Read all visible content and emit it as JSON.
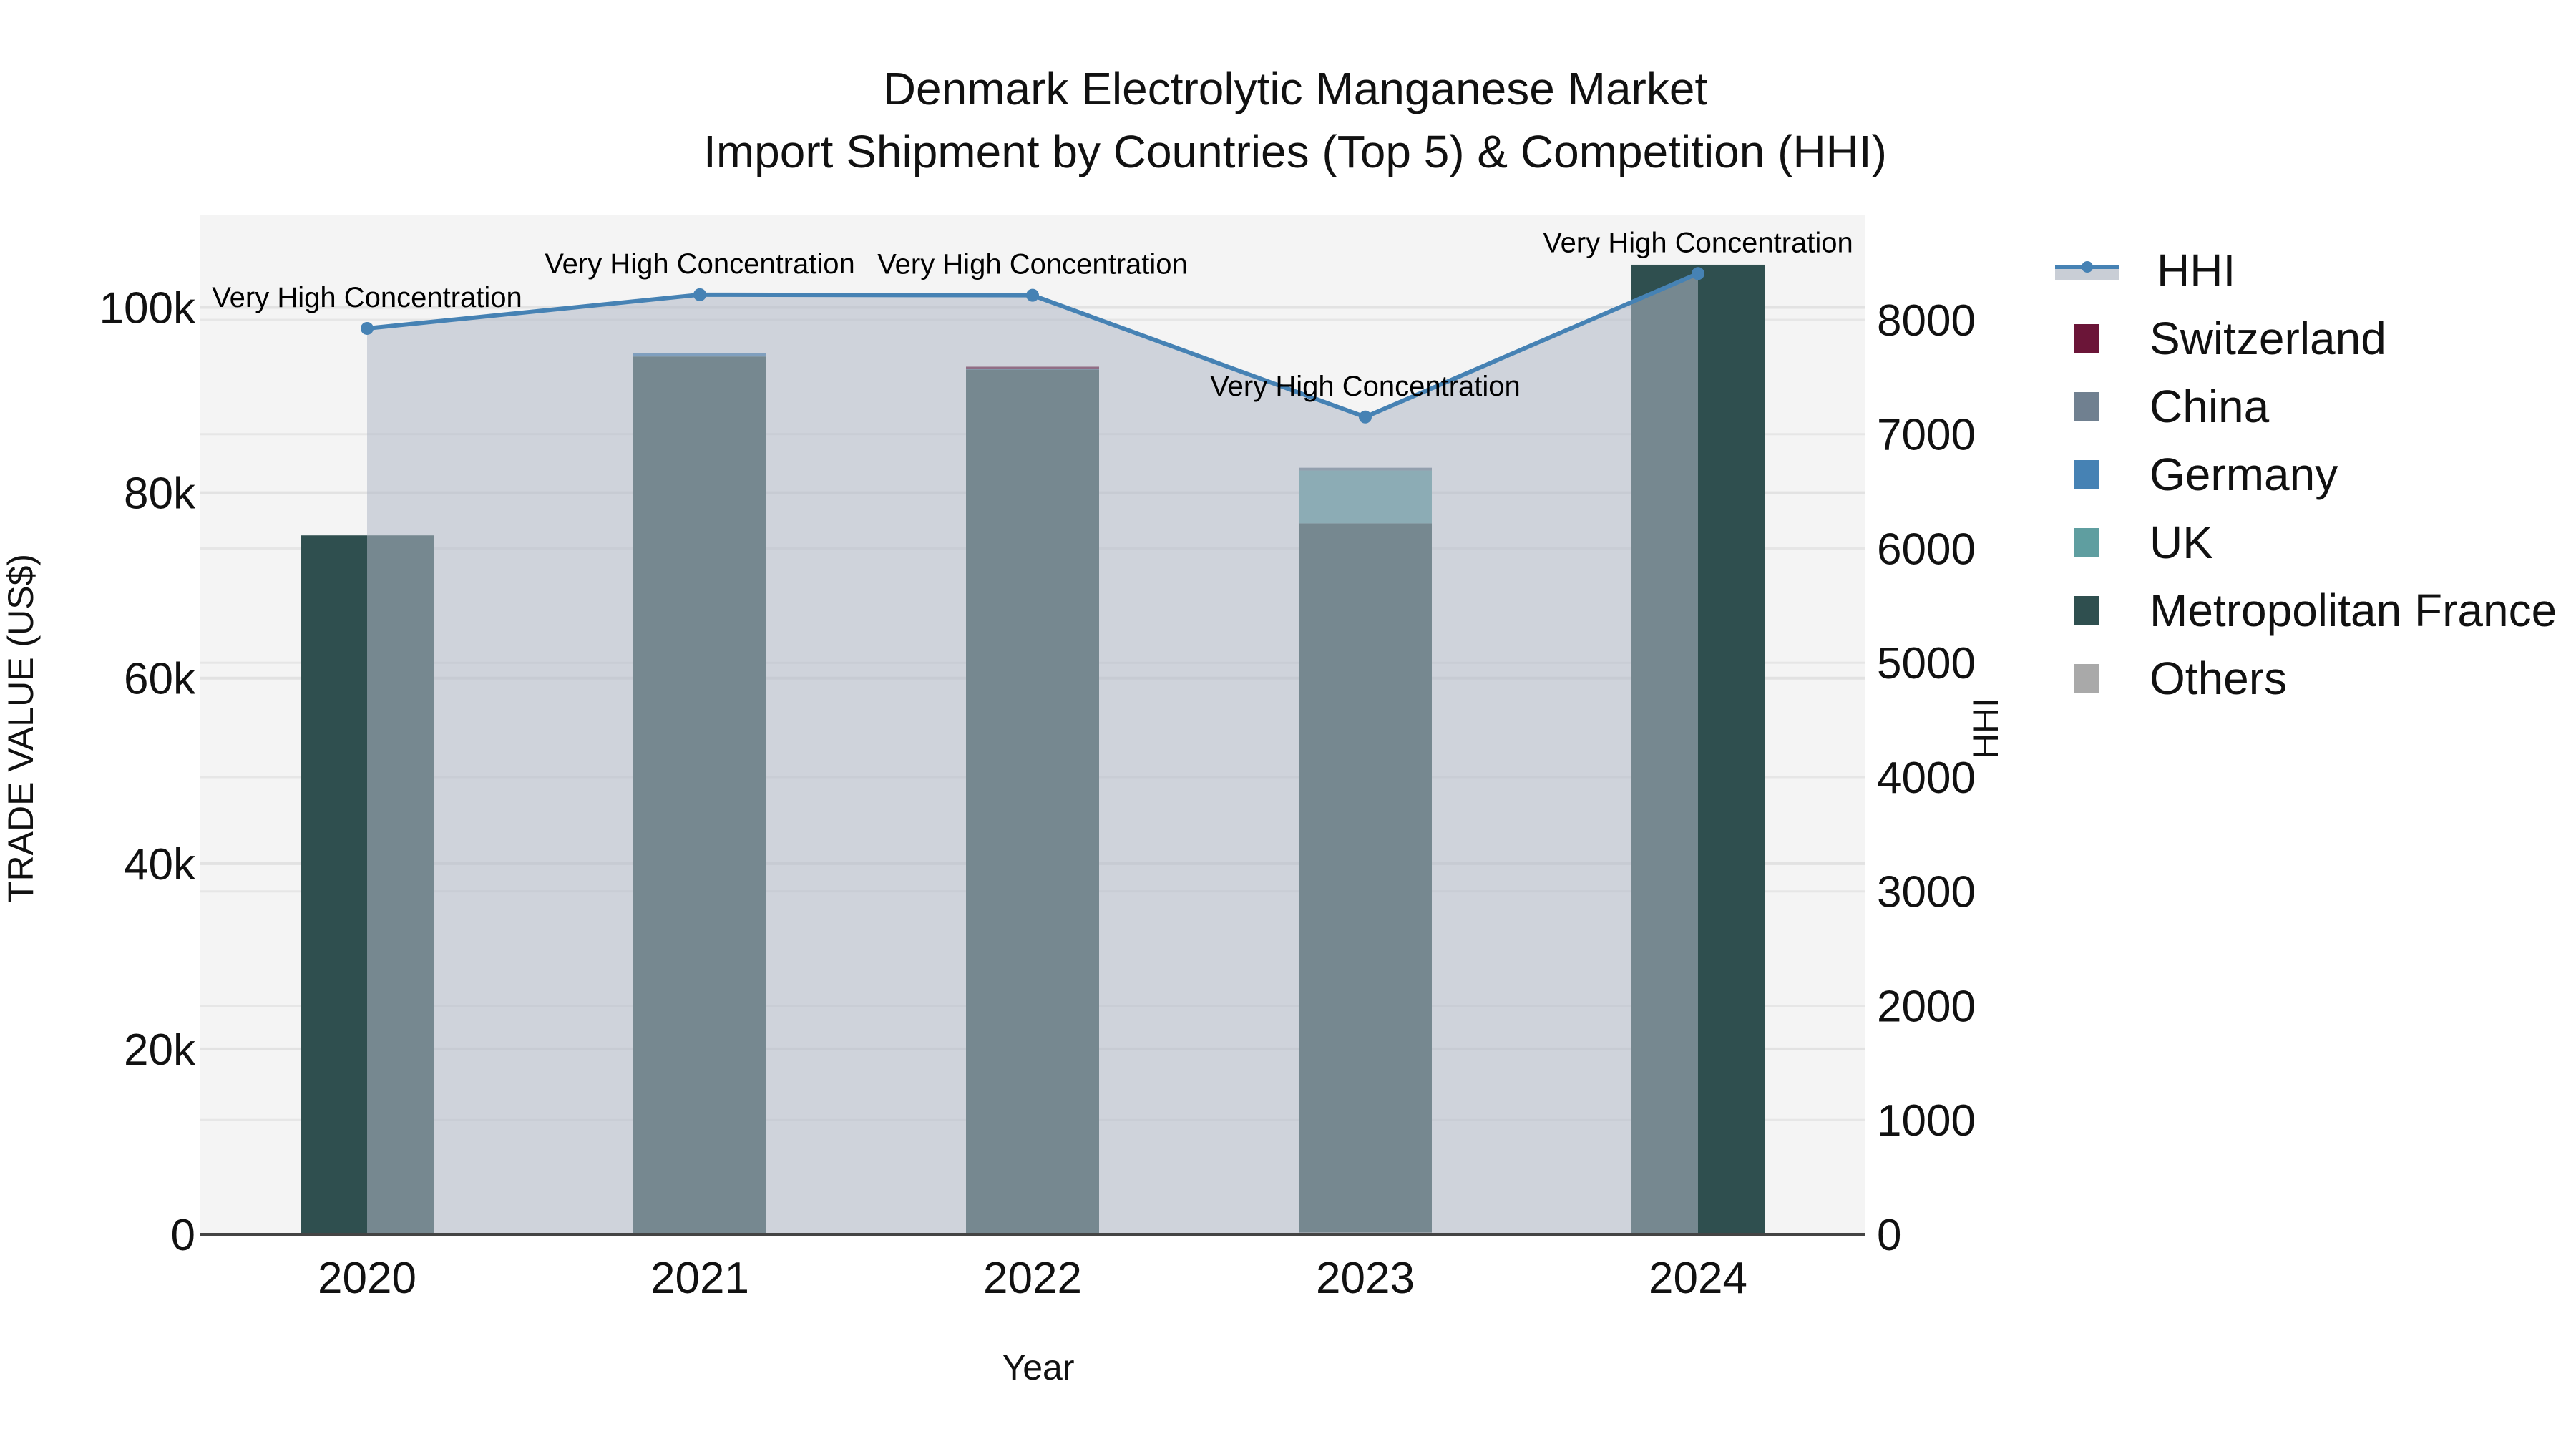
{
  "title": {
    "line1": "Denmark Electrolytic Manganese Market",
    "line2": "Import Shipment by Countries (Top 5) & Competition (HHI)"
  },
  "axes": {
    "x_title": "Year",
    "y_left_title": "TRADE VALUE (US$)",
    "y_right_title": "HHI",
    "y_left_ticks": [
      "0",
      "20k",
      "40k",
      "60k",
      "80k",
      "100k"
    ],
    "y_right_ticks": [
      "0",
      "1000",
      "2000",
      "3000",
      "4000",
      "5000",
      "6000",
      "7000",
      "8000"
    ],
    "x_ticks": [
      "2020",
      "2021",
      "2022",
      "2023",
      "2024"
    ]
  },
  "legend": [
    {
      "label": "HHI",
      "type": "line",
      "color": "#4682B4"
    },
    {
      "label": "Switzerland",
      "type": "bar",
      "color": "#6B1538"
    },
    {
      "label": "China",
      "type": "bar",
      "color": "#708090"
    },
    {
      "label": "Germany",
      "type": "bar",
      "color": "#4682B4"
    },
    {
      "label": "UK",
      "type": "bar",
      "color": "#5F9EA0"
    },
    {
      "label": "Metropolitan France",
      "type": "bar",
      "color": "#2F4F4F"
    },
    {
      "label": "Others",
      "type": "bar",
      "color": "#A9A9A9"
    }
  ],
  "chart_data": {
    "type": "bar",
    "subtype": "stacked bar + line (dual axis)",
    "title": "Denmark Electrolytic Manganese Market / Import Shipment by Countries (Top 5) & Competition (HHI)",
    "xlabel": "Year",
    "ylabel": "TRADE VALUE (US$)",
    "y2label": "HHI",
    "categories": [
      "2020",
      "2021",
      "2022",
      "2023",
      "2024"
    ],
    "ylim": [
      0,
      110000
    ],
    "y2lim": [
      0,
      8920
    ],
    "stack_order_bottom_to_top": [
      "Others",
      "Metropolitan France",
      "UK",
      "Germany",
      "China",
      "Switzerland"
    ],
    "series": [
      {
        "name": "Others",
        "color": "#A9A9A9",
        "values": [
          0,
          0,
          0,
          200,
          0
        ]
      },
      {
        "name": "Metropolitan France",
        "color": "#2F4F4F",
        "values": [
          75400,
          94700,
          93300,
          76500,
          104600
        ]
      },
      {
        "name": "UK",
        "color": "#5F9EA0",
        "values": [
          0,
          0,
          0,
          5700,
          0
        ]
      },
      {
        "name": "Germany",
        "color": "#4682B4",
        "values": [
          0,
          400,
          100,
          0,
          0
        ]
      },
      {
        "name": "China",
        "color": "#708090",
        "values": [
          0,
          0,
          0,
          300,
          0
        ]
      },
      {
        "name": "Switzerland",
        "color": "#6B1538",
        "values": [
          0,
          0,
          200,
          0,
          0
        ]
      }
    ],
    "line_series": {
      "name": "HHI",
      "axis": "right",
      "color": "#4682B4",
      "fill": "tozeroy",
      "values": [
        7925,
        8220,
        8215,
        7150,
        8405
      ],
      "annotations": [
        "Very High Concentration",
        "Very High Concentration",
        "Very High Concentration",
        "Very High Concentration",
        "Very High Concentration"
      ]
    },
    "grid": true,
    "legend_position": "right"
  }
}
